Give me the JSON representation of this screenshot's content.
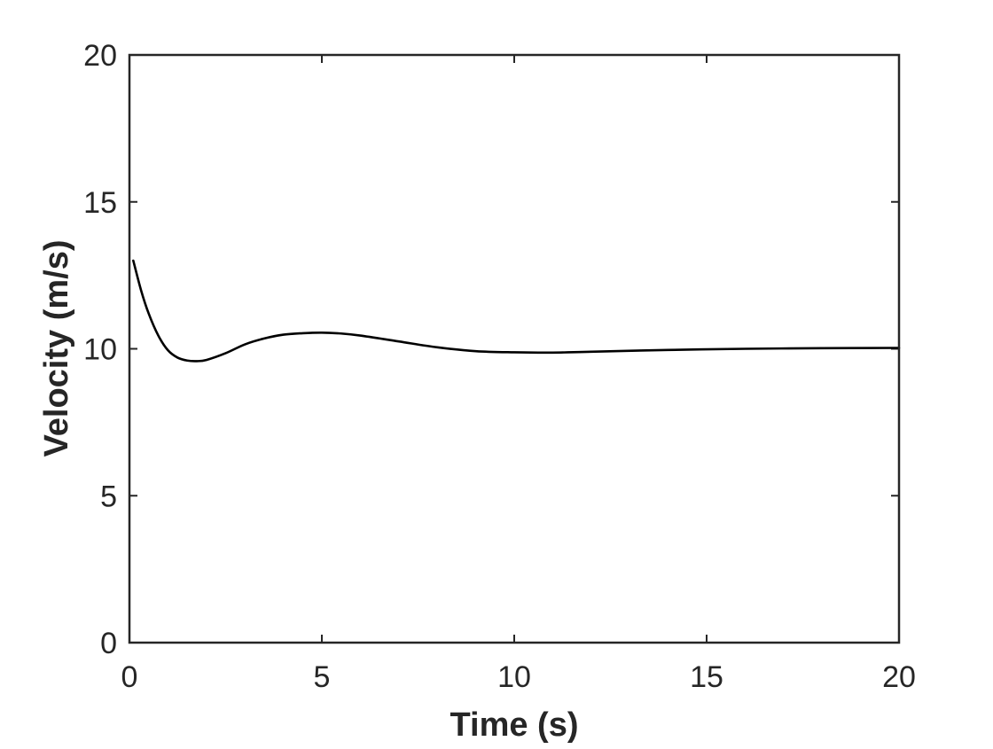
{
  "chart_data": {
    "type": "line",
    "title": "",
    "xlabel": "Time (s)",
    "ylabel": "Velocity (m/s)",
    "xlim": [
      0,
      20
    ],
    "ylim": [
      0,
      20
    ],
    "xticks": [
      0,
      5,
      10,
      15,
      20
    ],
    "yticks": [
      0,
      5,
      10,
      15,
      20
    ],
    "xtick_labels": [
      "0",
      "5",
      "10",
      "15",
      "20"
    ],
    "ytick_labels": [
      "0",
      "5",
      "10",
      "15",
      "20"
    ],
    "grid": false,
    "box": true,
    "series": [
      {
        "color": "#000000",
        "x": [
          0.1,
          0.3,
          0.5,
          0.75,
          1.0,
          1.25,
          1.5,
          1.75,
          2.0,
          2.5,
          3.0,
          3.5,
          4.0,
          4.5,
          5.0,
          5.5,
          6.0,
          7.0,
          8.0,
          9.0,
          10.0,
          11.0,
          12.0,
          14.0,
          16.0,
          18.0,
          20.0
        ],
        "y": [
          13.0,
          12.0,
          11.2,
          10.45,
          9.95,
          9.7,
          9.6,
          9.58,
          9.62,
          9.85,
          10.15,
          10.35,
          10.48,
          10.53,
          10.55,
          10.52,
          10.45,
          10.25,
          10.05,
          9.92,
          9.88,
          9.87,
          9.9,
          9.96,
          10.0,
          10.02,
          10.03
        ]
      }
    ]
  }
}
